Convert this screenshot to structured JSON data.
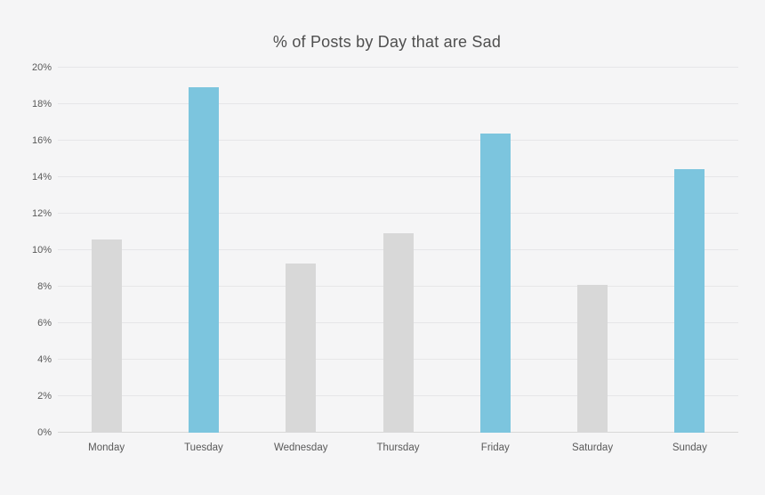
{
  "chart_data": {
    "type": "bar",
    "title": "% of Posts by Day that are Sad",
    "categories": [
      "Monday",
      "Tuesday",
      "Wednesday",
      "Thursday",
      "Friday",
      "Saturday",
      "Sunday"
    ],
    "values": [
      10.6,
      18.95,
      9.25,
      10.95,
      16.4,
      8.1,
      14.45
    ],
    "bar_colors": [
      "#d8d8d8",
      "#7cc5de",
      "#d8d8d8",
      "#d8d8d8",
      "#7cc5de",
      "#d8d8d8",
      "#7cc5de"
    ],
    "highlighted_categories": [
      "Tuesday",
      "Friday",
      "Sunday"
    ],
    "xlabel": "",
    "ylabel": "",
    "ylim": [
      0,
      20
    ],
    "ytick_step": 2,
    "ytick_labels": [
      "0%",
      "2%",
      "4%",
      "6%",
      "8%",
      "10%",
      "12%",
      "14%",
      "16%",
      "18%",
      "20%"
    ],
    "grid": true,
    "legend": false,
    "colors": {
      "bar_default": "#d8d8d8",
      "bar_highlight": "#7cc5de",
      "background": "#f5f5f6",
      "gridline": "#e6e6e8",
      "axis_line": "#d8d8d8",
      "title_text": "#4f4f4f",
      "tick_text": "#595959"
    }
  }
}
